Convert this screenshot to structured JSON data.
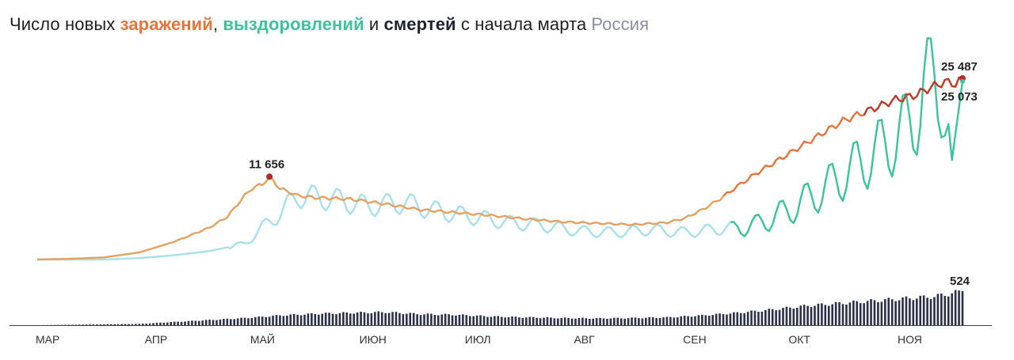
{
  "title": {
    "part1": "Число новых ",
    "infections": "заражений",
    "sep": ", ",
    "recoveries": "выздоровлений",
    "and": " и ",
    "deaths": "смертей",
    "part2": " с начала марта",
    "region": "Россия"
  },
  "colors": {
    "infections": "#e8743b",
    "infections_early": "#e5a160",
    "infections_late": "#c0392b",
    "recoveries": "#3bc49a",
    "recoveries_light": "#a8e0ea",
    "deaths": "#2c3047",
    "peak_dot": "#b52a2a"
  },
  "chart_data": [
    {
      "type": "line",
      "title": "Число новых заражений, выздоровлений и смертей с начала марта",
      "xlabel": "",
      "ylabel": "",
      "x_ticks": [
        "МАР",
        "АПР",
        "МАЙ",
        "ИЮН",
        "ИЮЛ",
        "АВГ",
        "СЕН",
        "ОКТ",
        "НОЯ"
      ],
      "ylim": [
        0,
        26000
      ],
      "grid": false,
      "series": [
        {
          "key": "infections",
          "points": [
            [
              1,
              0
            ],
            [
              10,
              100
            ],
            [
              20,
              300
            ],
            [
              30,
              1000
            ],
            [
              40,
              2500
            ],
            [
              50,
              4500
            ],
            [
              55,
              6000
            ],
            [
              60,
              9000
            ],
            [
              62,
              10000
            ],
            [
              65,
              10600
            ],
            [
              67,
              11656
            ],
            [
              70,
              10000
            ],
            [
              75,
              9000
            ],
            [
              80,
              8700
            ],
            [
              90,
              8500
            ],
            [
              100,
              7800
            ],
            [
              110,
              7000
            ],
            [
              120,
              6600
            ],
            [
              130,
              6200
            ],
            [
              140,
              5700
            ],
            [
              150,
              5300
            ],
            [
              160,
              5100
            ],
            [
              170,
              4900
            ],
            [
              180,
              5200
            ],
            [
              185,
              5800
            ],
            [
              190,
              7000
            ],
            [
              195,
              8500
            ],
            [
              200,
              10300
            ],
            [
              205,
              12000
            ],
            [
              210,
              13500
            ],
            [
              215,
              15000
            ],
            [
              220,
              16500
            ],
            [
              225,
              18000
            ],
            [
              230,
              19500
            ],
            [
              235,
              20500
            ],
            [
              240,
              21500
            ],
            [
              245,
              22500
            ],
            [
              250,
              23000
            ],
            [
              255,
              24200
            ],
            [
              259,
              25000
            ],
            [
              262,
              24700
            ],
            [
              264,
              25487
            ]
          ]
        },
        {
          "key": "recoveries",
          "points": [
            [
              1,
              0
            ],
            [
              20,
              0
            ],
            [
              30,
              200
            ],
            [
              40,
              600
            ],
            [
              50,
              1200
            ],
            [
              60,
              2200
            ],
            [
              65,
              4500
            ],
            [
              70,
              6500
            ],
            [
              75,
              9000
            ],
            [
              85,
              8500
            ],
            [
              95,
              7500
            ],
            [
              105,
              8000
            ],
            [
              115,
              6800
            ],
            [
              125,
              6000
            ],
            [
              135,
              5200
            ],
            [
              145,
              4800
            ],
            [
              155,
              4000
            ],
            [
              165,
              3800
            ],
            [
              175,
              4200
            ],
            [
              185,
              3800
            ],
            [
              195,
              4300
            ],
            [
              205,
              4800
            ],
            [
              215,
              7000
            ],
            [
              225,
              10000
            ],
            [
              235,
              13500
            ],
            [
              245,
              17000
            ],
            [
              250,
              19500
            ],
            [
              253,
              24000
            ],
            [
              256,
              25000
            ],
            [
              258,
              24500
            ],
            [
              261,
              14000
            ],
            [
              264,
              25073
            ]
          ]
        },
        {
          "key": "deaths",
          "note": "daily new deaths, bar chart",
          "points": [
            [
              1,
              0
            ],
            [
              30,
              20
            ],
            [
              60,
              110
            ],
            [
              70,
              150
            ],
            [
              80,
              175
            ],
            [
              90,
              190
            ],
            [
              100,
              200
            ],
            [
              110,
              170
            ],
            [
              120,
              160
            ],
            [
              130,
              135
            ],
            [
              140,
              120
            ],
            [
              150,
              110
            ],
            [
              160,
              105
            ],
            [
              170,
              110
            ],
            [
              180,
              120
            ],
            [
              190,
              150
            ],
            [
              200,
              190
            ],
            [
              210,
              240
            ],
            [
              220,
              300
            ],
            [
              230,
              340
            ],
            [
              240,
              380
            ],
            [
              250,
              420
            ],
            [
              256,
              440
            ],
            [
              260,
              480
            ],
            [
              264,
              524
            ]
          ]
        }
      ],
      "annotations": [
        {
          "key": "infections_peak",
          "label": "11 656",
          "x": 67,
          "y": 11656
        },
        {
          "key": "infections_last",
          "label": "25 487",
          "x": 264,
          "y": 25487
        },
        {
          "key": "recoveries_last",
          "label": "25 073",
          "x": 264,
          "y": 25073
        },
        {
          "key": "deaths_last",
          "label": "524",
          "x": 264,
          "y": 524
        }
      ]
    }
  ]
}
